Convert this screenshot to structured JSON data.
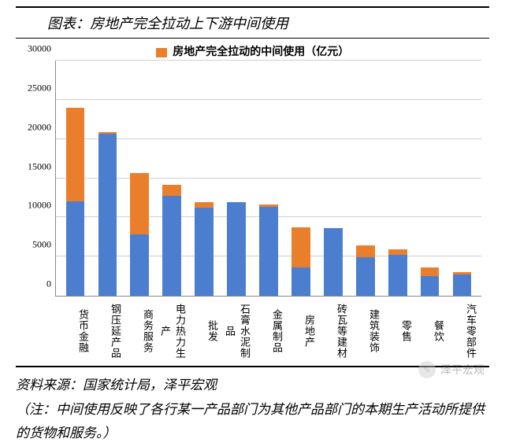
{
  "title": "图表：房地产完全拉动上下游中间使用",
  "legend": {
    "label": "房地产完全拉动的中间使用（亿元）",
    "color": "#e97f2c"
  },
  "chart": {
    "type": "stacked-bar",
    "ylim": [
      0,
      30000
    ],
    "ytick_step": 5000,
    "yticks": [
      0,
      5000,
      10000,
      15000,
      20000,
      25000,
      30000
    ],
    "grid_color": "#d0d0d0",
    "axis_color": "#888888",
    "background_color": "#ffffff",
    "bar_width": 0.58,
    "colors": {
      "base": "#4b7ecf",
      "overlay": "#e97f2c"
    },
    "title_fontsize": 18,
    "label_fontsize": 13,
    "tick_fontsize": 12,
    "categories": [
      "货币金融",
      "钢压延产品",
      "商务服务",
      "电力热力生产",
      "批发",
      "石膏水泥制品",
      "金属制品",
      "房地产",
      "砖瓦等建材",
      "建筑装饰",
      "零售",
      "餐饮",
      "汽车零部件"
    ],
    "base_values": [
      12000,
      20700,
      7800,
      12700,
      11200,
      11900,
      11300,
      3600,
      8600,
      4900,
      5200,
      2500,
      2700
    ],
    "overlay_values": [
      12000,
      200,
      7900,
      1500,
      700,
      50,
      300,
      5100,
      50,
      1500,
      700,
      1100,
      300
    ]
  },
  "source": "资料来源：国家统计局，泽平宏观",
  "note": "（注：中间使用反映了各行某一产品部门为其他产品部门的本期生产活动所提供的货物和服务。）",
  "watermark": {
    "icon_glyph": "✎",
    "text": "泽平宏观"
  }
}
